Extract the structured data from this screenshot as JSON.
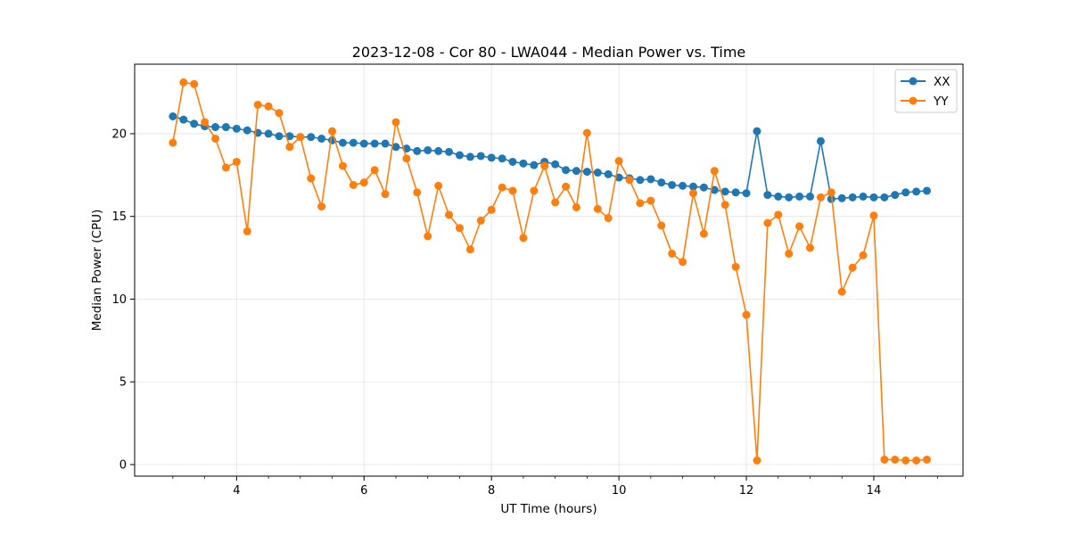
{
  "chart_data": {
    "type": "line",
    "title": "2023-12-08 - Cor 80 - LWA044 - Median Power vs. Time",
    "xlabel": "UT Time (hours)",
    "ylabel": "Median Power (CPU)",
    "xlim": [
      2.4,
      15.4
    ],
    "ylim": [
      -0.7,
      24.2
    ],
    "xticks": [
      4,
      6,
      8,
      10,
      12,
      14
    ],
    "yticks": [
      0,
      5,
      10,
      15,
      20
    ],
    "grid": true,
    "legend_position": "top-right",
    "series": [
      {
        "name": "XX",
        "color": "#1f77b4",
        "marker": "circle",
        "x": [
          3.0,
          3.167,
          3.333,
          3.5,
          3.667,
          3.833,
          4.0,
          4.167,
          4.333,
          4.5,
          4.667,
          4.833,
          5.0,
          5.167,
          5.333,
          5.5,
          5.667,
          5.833,
          6.0,
          6.167,
          6.333,
          6.5,
          6.667,
          6.833,
          7.0,
          7.167,
          7.333,
          7.5,
          7.667,
          7.833,
          8.0,
          8.167,
          8.333,
          8.5,
          8.667,
          8.833,
          9.0,
          9.167,
          9.333,
          9.5,
          9.667,
          9.833,
          10.0,
          10.167,
          10.333,
          10.5,
          10.667,
          10.833,
          11.0,
          11.167,
          11.333,
          11.5,
          11.667,
          11.833,
          12.0,
          12.167,
          12.333,
          12.5,
          12.667,
          12.833,
          13.0,
          13.167,
          13.333,
          13.5,
          13.667,
          13.833,
          14.0,
          14.167,
          14.333,
          14.5,
          14.667,
          14.833
        ],
        "y": [
          21.05,
          20.85,
          20.6,
          20.45,
          20.4,
          20.4,
          20.3,
          20.2,
          20.05,
          20.0,
          19.85,
          19.85,
          19.8,
          19.8,
          19.7,
          19.6,
          19.45,
          19.45,
          19.4,
          19.4,
          19.4,
          19.2,
          19.1,
          18.95,
          19.0,
          18.95,
          18.9,
          18.7,
          18.6,
          18.65,
          18.55,
          18.5,
          18.3,
          18.2,
          18.1,
          18.3,
          18.15,
          17.8,
          17.75,
          17.7,
          17.65,
          17.55,
          17.35,
          17.3,
          17.2,
          17.25,
          17.05,
          16.9,
          16.85,
          16.8,
          16.75,
          16.6,
          16.5,
          16.45,
          16.4,
          20.15,
          16.3,
          16.2,
          16.15,
          16.2,
          16.2,
          19.55,
          16.05,
          16.1,
          16.15,
          16.2,
          16.15,
          16.15,
          16.3,
          16.45,
          16.5,
          16.55
        ]
      },
      {
        "name": "YY",
        "color": "#ff7f0e",
        "marker": "circle",
        "x": [
          3.0,
          3.167,
          3.333,
          3.5,
          3.667,
          3.833,
          4.0,
          4.167,
          4.333,
          4.5,
          4.667,
          4.833,
          5.0,
          5.167,
          5.333,
          5.5,
          5.667,
          5.833,
          6.0,
          6.167,
          6.333,
          6.5,
          6.667,
          6.833,
          7.0,
          7.167,
          7.333,
          7.5,
          7.667,
          7.833,
          8.0,
          8.167,
          8.333,
          8.5,
          8.667,
          8.833,
          9.0,
          9.167,
          9.333,
          9.5,
          9.667,
          9.833,
          10.0,
          10.167,
          10.333,
          10.5,
          10.667,
          10.833,
          11.0,
          11.167,
          11.333,
          11.5,
          11.667,
          11.833,
          12.0,
          12.167,
          12.333,
          12.5,
          12.667,
          12.833,
          13.0,
          13.167,
          13.333,
          13.5,
          13.667,
          13.833,
          14.0,
          14.167,
          14.333,
          14.5,
          14.667,
          14.833
        ],
        "y": [
          19.45,
          23.1,
          23.0,
          20.7,
          19.7,
          17.95,
          18.3,
          14.1,
          21.75,
          21.65,
          21.25,
          19.2,
          19.8,
          17.3,
          15.6,
          20.15,
          18.05,
          16.9,
          17.05,
          17.8,
          16.35,
          20.7,
          18.5,
          16.45,
          13.8,
          16.85,
          15.1,
          14.3,
          13.0,
          14.75,
          15.4,
          16.75,
          16.55,
          13.7,
          16.55,
          18.05,
          15.85,
          16.8,
          15.55,
          20.05,
          15.45,
          14.9,
          18.35,
          17.2,
          15.8,
          15.95,
          14.45,
          12.75,
          12.25,
          16.4,
          13.95,
          17.75,
          15.7,
          11.95,
          9.05,
          0.25,
          14.6,
          15.1,
          12.75,
          14.4,
          13.1,
          16.15,
          16.45,
          10.45,
          11.9,
          12.65,
          15.05,
          0.3,
          0.3,
          0.25,
          0.25,
          0.3
        ]
      }
    ]
  }
}
